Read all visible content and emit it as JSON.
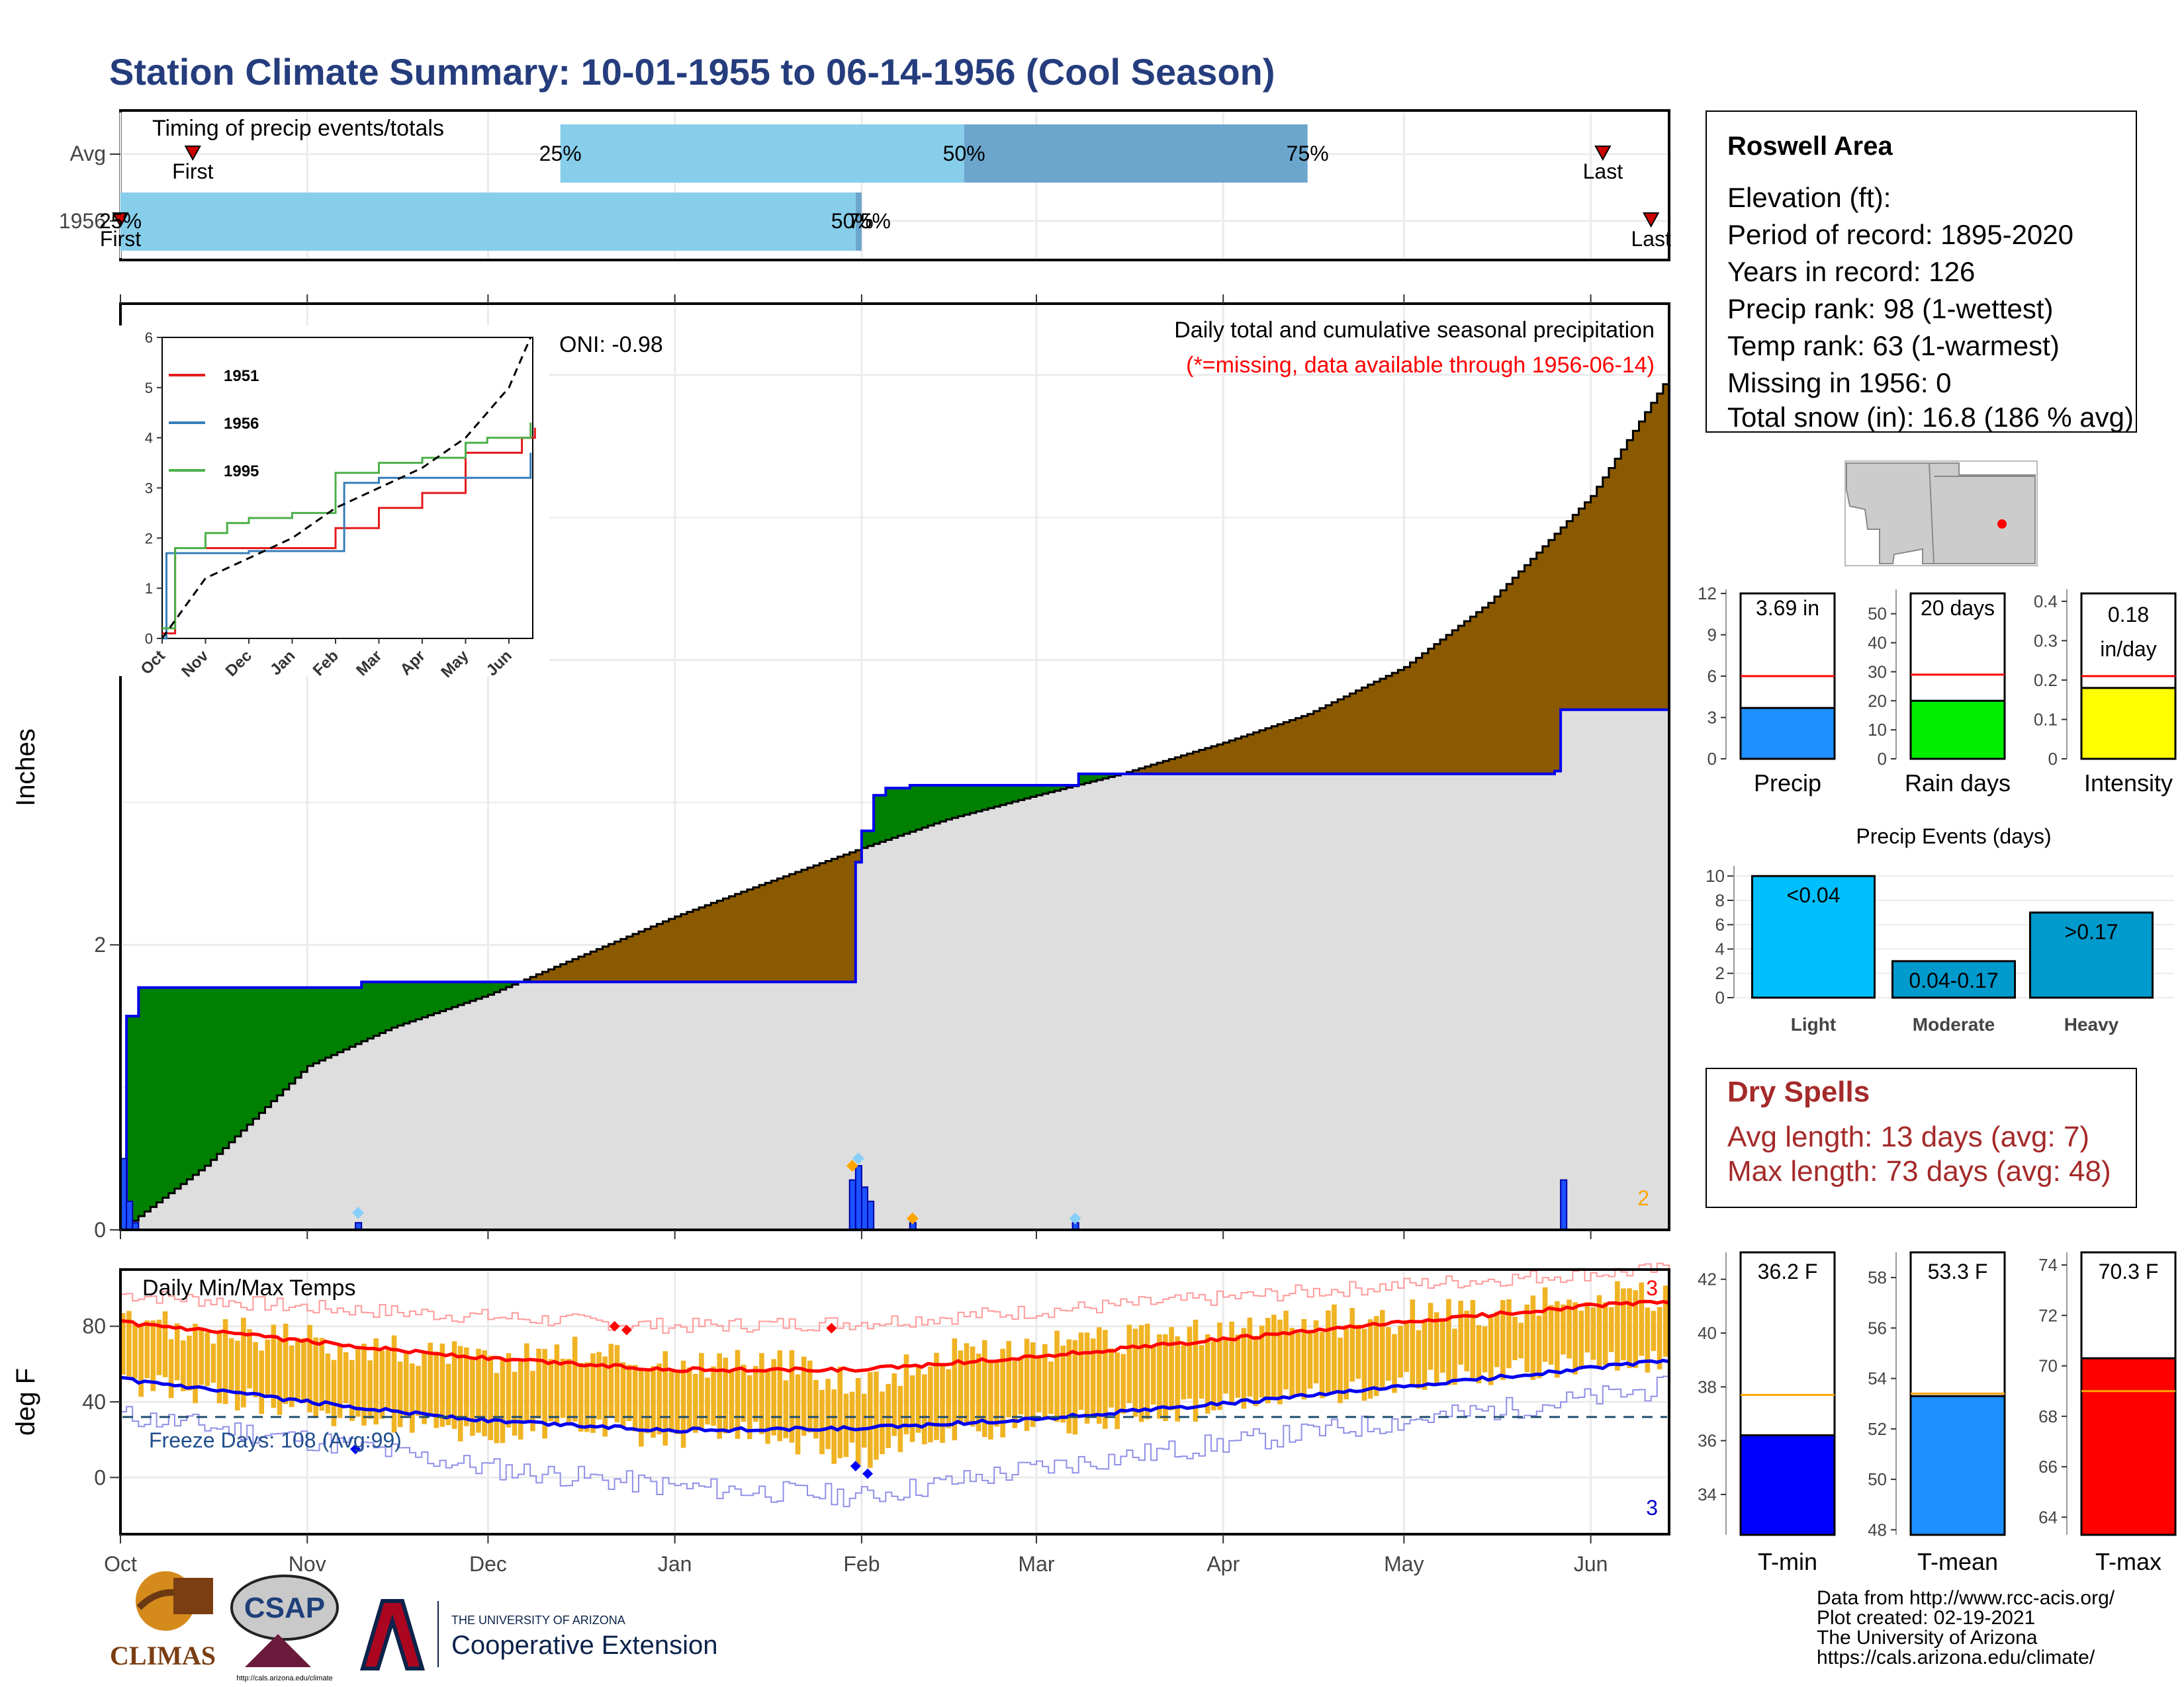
{
  "page": {
    "title": "Station Climate Summary: 10-01-1955 to 06-14-1956 (Cool Season)"
  },
  "timing_panel": {
    "title": "Timing of precip events/totals",
    "rows": [
      "Avg",
      "1956"
    ],
    "avg": {
      "first_label": "First",
      "last_label": "Last",
      "p25": "25%",
      "p50": "50%",
      "p75": "75%",
      "first_date": "1955-10-13",
      "last_date": "1956-06-03",
      "p25_date": "1955-12-13",
      "p50_date": "1956-02-18",
      "p75_date": "1956-04-15"
    },
    "y1956": {
      "first_label": "First",
      "last_label": "Last",
      "p25": "25%",
      "p50": "50%",
      "p75": "75%",
      "first_date": "1955-10-01",
      "last_date": "1956-06-11",
      "p50_date": "1956-01-31",
      "p75_date": "1956-02-01"
    }
  },
  "precip_panel": {
    "ylabel": "Inches",
    "oni": "ONI: -0.98",
    "subtitle": "Daily total and cumulative seasonal precipitation",
    "missing_note": "(*=missing, data available through 1956-06-14)",
    "corner_count": "2",
    "colors": {
      "above": "#008000",
      "below": "#8b5a00",
      "avg_fill": "#dedede",
      "line": "#0000ee"
    }
  },
  "temp_panel": {
    "ylabel": "deg F",
    "title": "Daily Min/Max Temps",
    "freeze_label": "Freeze Days: 108 (Avg:99)",
    "record_high_count": "3",
    "record_low_count": "3"
  },
  "x_axis_months": [
    "Oct",
    "Nov",
    "Dec",
    "Jan",
    "Feb",
    "Mar",
    "Apr",
    "May",
    "Jun"
  ],
  "inset": {
    "legend": [
      "1951",
      "1956",
      "1995"
    ],
    "legend_colors": [
      "#e41a1c",
      "#377eb8",
      "#4daf4a"
    ],
    "months": [
      "Oct",
      "Nov",
      "Dec",
      "Jan",
      "Feb",
      "Mar",
      "Apr",
      "May",
      "Jun"
    ]
  },
  "station_info": {
    "name": "Roswell Area",
    "lines": [
      "Elevation (ft):",
      "Period of record: 1895-2020",
      "Years in record: 126",
      "Precip rank: 98 (1-wettest)",
      "Temp rank: 63 (1-warmest)",
      "Missing in 1956: 0",
      "Total snow (in): 16.8 (186 % avg)"
    ]
  },
  "summary_bars": [
    {
      "label": "Precip",
      "value_text": "3.69 in",
      "value": 3.69,
      "avg": 6.0,
      "ticks": [
        0,
        3,
        6,
        9,
        12
      ],
      "ymin": 0,
      "ymax": 12,
      "color": "#1e90ff"
    },
    {
      "label": "Rain days",
      "value_text": "20 days",
      "value": 20,
      "avg": 29,
      "ticks": [
        0,
        10,
        20,
        30,
        40,
        50
      ],
      "ymin": 0,
      "ymax": 57,
      "color": "#00ee00"
    },
    {
      "label": "Intensity",
      "value_text": "0.18 in/day",
      "value_line1": "0.18",
      "value_line2": "in/day",
      "value": 0.18,
      "avg": 0.21,
      "ticks": [
        0.0,
        0.1,
        0.2,
        0.3,
        0.4
      ],
      "ymin": 0,
      "ymax": 0.42,
      "color": "#ffff00"
    }
  ],
  "precip_events": {
    "title": "Precip Events (days)",
    "categories": [
      "Light",
      "Moderate",
      "Heavy"
    ],
    "labels": [
      "<0.04",
      "0.04-0.17",
      ">0.17"
    ],
    "values": [
      10,
      3,
      7
    ],
    "ticks": [
      0,
      2,
      4,
      6,
      8,
      10
    ],
    "colors": [
      "#00bfff",
      "#009acd",
      "#009acd"
    ]
  },
  "dry_spells": {
    "title": "Dry Spells",
    "avg_line": "Avg length: 13 days (avg: 7)",
    "max_line": "Max length: 73 days (avg: 48)"
  },
  "temp_bars": [
    {
      "label": "T-min",
      "value_text": "36.2 F",
      "value": 36.2,
      "avg": 37.7,
      "ticks": [
        34,
        36,
        38,
        40,
        42
      ],
      "ymin": 32.5,
      "ymax": 43,
      "color": "#0000ff"
    },
    {
      "label": "T-mean",
      "value_text": "53.3 F",
      "value": 53.3,
      "avg": 53.4,
      "ticks": [
        48,
        50,
        52,
        54,
        56,
        58
      ],
      "ymin": 47.8,
      "ymax": 59,
      "color": "#1e90ff"
    },
    {
      "label": "T-max",
      "value_text": "70.3 F",
      "value": 70.3,
      "avg": 69.0,
      "ticks": [
        64,
        66,
        68,
        70,
        72,
        74
      ],
      "ymin": 63.3,
      "ymax": 74.5,
      "color": "#ff0000"
    }
  ],
  "footer": {
    "logos": [
      "CLIMAS",
      "CSAP"
    ],
    "logo_url": "http://cals.arizona.edu/climate",
    "ua_small": "THE UNIVERSITY OF ARIZONA",
    "ua_big": "Cooperative Extension",
    "credits": [
      "Data from http://www.rcc-acis.org/",
      "Plot created: 02-19-2021",
      "The University of Arizona",
      "https://cals.arizona.edu/climate/"
    ]
  },
  "chart_data": [
    {
      "type": "area",
      "name": "Daily total and cumulative seasonal precipitation",
      "ylabel": "Inches",
      "ylim": [
        0,
        6.5
      ],
      "x_start": "1955-10-01",
      "x_end": "1956-06-14",
      "avg_cumulative": {
        "dates": [
          "1955-10-01",
          "1955-10-15",
          "1955-11-01",
          "1955-11-15",
          "1955-12-01",
          "1955-12-15",
          "1956-01-01",
          "1956-01-15",
          "1956-02-01",
          "1956-02-15",
          "1956-03-01",
          "1956-03-15",
          "1956-04-01",
          "1956-04-15",
          "1956-05-01",
          "1956-05-15",
          "1956-06-01",
          "1956-06-14"
        ],
        "values": [
          0.0,
          0.45,
          1.15,
          1.42,
          1.65,
          1.9,
          2.2,
          2.42,
          2.68,
          2.88,
          3.05,
          3.2,
          3.42,
          3.62,
          3.95,
          4.4,
          5.15,
          6.0
        ]
      },
      "season_cumulative": {
        "dates": [
          "1955-10-01",
          "1955-10-02",
          "1955-10-04",
          "1955-11-09",
          "1955-11-10",
          "1956-01-29",
          "1956-01-31",
          "1956-02-01",
          "1956-02-03",
          "1956-02-05",
          "1956-02-09",
          "1956-03-06",
          "1956-03-08",
          "1956-05-26",
          "1956-05-27",
          "1956-06-14"
        ],
        "values": [
          0.0,
          1.5,
          1.7,
          1.7,
          1.74,
          1.74,
          2.58,
          2.8,
          3.05,
          3.1,
          3.12,
          3.12,
          3.2,
          3.22,
          3.65,
          3.69
        ]
      },
      "daily_precip": {
        "dates": [
          "1955-10-01",
          "1955-10-02",
          "1955-10-03",
          "1955-11-09",
          "1956-01-30",
          "1956-01-31",
          "1956-02-01",
          "1956-02-02",
          "1956-02-09",
          "1956-03-07",
          "1956-05-27"
        ],
        "values": [
          0.5,
          0.2,
          0.05,
          0.05,
          0.35,
          0.45,
          0.3,
          0.2,
          0.05,
          0.05,
          0.35
        ]
      }
    },
    {
      "type": "line",
      "name": "Inset cumulative precipitation",
      "ylim": [
        0,
        6
      ],
      "series": [
        {
          "name": "1951",
          "months": [
            0,
            0.3,
            1,
            2,
            3.5,
            4,
            5,
            6,
            7,
            8.3,
            8.6
          ],
          "values": [
            0.1,
            1.8,
            1.8,
            1.8,
            1.8,
            2.2,
            2.6,
            2.9,
            3.7,
            4.0,
            4.2
          ]
        },
        {
          "name": "1956",
          "months": [
            0,
            0.1,
            1,
            2,
            4,
            4.2,
            5,
            6,
            7,
            8,
            8.5
          ],
          "values": [
            0,
            1.7,
            1.7,
            1.74,
            1.74,
            3.1,
            3.2,
            3.2,
            3.2,
            3.2,
            3.7
          ]
        },
        {
          "name": "1995",
          "months": [
            0,
            0.3,
            1,
            1.5,
            2,
            3,
            4,
            5,
            6,
            7,
            7.5,
            8.5
          ],
          "values": [
            0.2,
            1.8,
            2.1,
            2.3,
            2.4,
            2.5,
            3.3,
            3.5,
            3.6,
            3.9,
            4.0,
            4.3
          ]
        },
        {
          "name": "Avg",
          "months": [
            0,
            1,
            2,
            3,
            4,
            5,
            6,
            7,
            8,
            8.5
          ],
          "values": [
            0,
            1.2,
            1.6,
            2.0,
            2.6,
            3.0,
            3.4,
            4.0,
            5.0,
            6.0
          ]
        }
      ]
    },
    {
      "type": "bar",
      "name": "Daily Min/Max Temps",
      "ylabel": "deg F",
      "ylim": [
        -30,
        110
      ],
      "freeze_threshold": 32,
      "avg_tmax": {
        "dates": [
          "1955-10-01",
          "1955-11-01",
          "1955-12-01",
          "1956-01-01",
          "1956-02-01",
          "1956-03-01",
          "1956-04-01",
          "1956-05-01",
          "1956-06-01",
          "1956-06-14"
        ],
        "values": [
          82,
          72,
          63,
          57,
          57,
          64,
          73,
          82,
          91,
          93
        ]
      },
      "avg_tmin": {
        "dates": [
          "1955-10-01",
          "1955-11-01",
          "1955-12-01",
          "1956-01-01",
          "1956-02-01",
          "1956-03-01",
          "1956-04-01",
          "1956-05-01",
          "1956-06-01",
          "1956-06-14"
        ],
        "values": [
          52,
          40,
          30,
          25,
          26,
          31,
          39,
          48,
          58,
          62
        ]
      },
      "record_high": {
        "dates": [
          "1955-10-01",
          "1955-11-01",
          "1955-12-01",
          "1956-01-01",
          "1956-02-01",
          "1956-03-01",
          "1956-04-01",
          "1956-05-01",
          "1956-06-01",
          "1956-06-14"
        ],
        "values": [
          97,
          90,
          85,
          80,
          82,
          88,
          95,
          102,
          108,
          110
        ]
      },
      "record_low": {
        "dates": [
          "1955-10-01",
          "1955-11-01",
          "1955-12-01",
          "1956-01-01",
          "1956-02-01",
          "1956-03-01",
          "1956-04-01",
          "1956-05-01",
          "1956-06-01",
          "1956-06-14"
        ],
        "values": [
          33,
          20,
          5,
          -5,
          -10,
          5,
          18,
          30,
          42,
          48
        ]
      },
      "obs_tmax": {
        "dates": [
          "1955-10-01",
          "1955-10-15",
          "1955-11-01",
          "1955-11-15",
          "1955-12-01",
          "1955-12-15",
          "1956-01-01",
          "1956-01-15",
          "1956-02-01",
          "1956-02-15",
          "1956-03-01",
          "1956-03-15",
          "1956-04-01",
          "1956-04-15",
          "1956-05-01",
          "1956-05-15",
          "1956-06-01",
          "1956-06-14"
        ],
        "values": [
          80,
          78,
          72,
          68,
          62,
          68,
          60,
          62,
          50,
          65,
          68,
          72,
          78,
          82,
          85,
          88,
          95,
          96
        ]
      },
      "obs_tmin": {
        "dates": [
          "1955-10-01",
          "1955-10-15",
          "1955-11-01",
          "1955-11-15",
          "1955-12-01",
          "1955-12-15",
          "1956-01-01",
          "1956-01-15",
          "1956-02-01",
          "1956-02-15",
          "1956-03-01",
          "1956-03-15",
          "1956-04-01",
          "1956-04-15",
          "1956-05-01",
          "1956-05-15",
          "1956-06-01",
          "1956-06-14"
        ],
        "values": [
          50,
          45,
          35,
          30,
          22,
          28,
          20,
          24,
          10,
          25,
          28,
          32,
          38,
          44,
          50,
          55,
          60,
          62
        ]
      }
    }
  ]
}
